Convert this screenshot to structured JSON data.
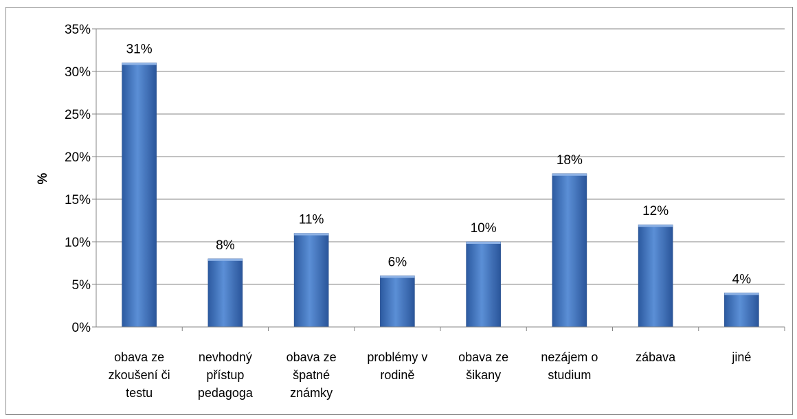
{
  "chart_data": {
    "type": "bar",
    "categories": [
      [
        "obava ze",
        "zkoušení či",
        "testu"
      ],
      [
        "nevhodný",
        "přístup",
        "pedagoga"
      ],
      [
        "obava ze",
        "špatné",
        "známky"
      ],
      [
        "problémy v",
        "rodině"
      ],
      [
        "obava ze",
        "šikany"
      ],
      [
        "nezájem o",
        "studium"
      ],
      [
        "zábava"
      ],
      [
        "jiné"
      ]
    ],
    "values": [
      31,
      8,
      11,
      6,
      10,
      18,
      12,
      4
    ],
    "data_labels": [
      "31%",
      "8%",
      "11%",
      "6%",
      "10%",
      "18%",
      "12%",
      "4%"
    ],
    "ylabel": "%",
    "ylim": [
      0,
      35
    ],
    "yticks": [
      "0%",
      "5%",
      "10%",
      "15%",
      "20%",
      "25%",
      "30%",
      "35%"
    ],
    "grid": true,
    "bar_color": "#3d72c1"
  }
}
